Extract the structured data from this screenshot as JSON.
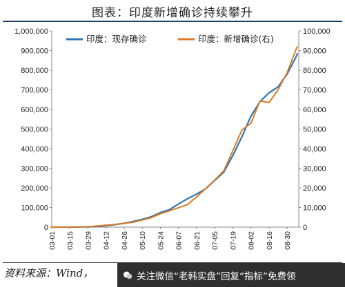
{
  "title": "图表：印度新增确诊持续攀升",
  "source": "资料来源：Wind，",
  "watermark": "关注微信“老韩实盘”回复“指标”免费领",
  "colors": {
    "series1": "#2e75b6",
    "series2": "#e07b22",
    "title_rule": "#1f3d6b"
  },
  "chart_data": {
    "type": "line",
    "x_tick_labels": [
      "03-01",
      "03-15",
      "03-29",
      "04-12",
      "04-26",
      "05-10",
      "05-24",
      "06-07",
      "06-21",
      "07-05",
      "07-19",
      "08-02",
      "08-16",
      "08-30"
    ],
    "y_left": {
      "lim": [
        0,
        1000000
      ],
      "tick_labels": [
        "0",
        "100,000",
        "200,000",
        "300,000",
        "400,000",
        "500,000",
        "600,000",
        "700,000",
        "800,000",
        "900,000",
        "1,000,000"
      ]
    },
    "y_right": {
      "lim": [
        0,
        100000
      ],
      "tick_labels": [
        "0",
        "10,000",
        "20,000",
        "30,000",
        "40,000",
        "50,000",
        "60,000",
        "70,000",
        "80,000",
        "90,000",
        "100,000"
      ]
    },
    "grid": false,
    "legend_position": "top",
    "series": [
      {
        "name": "印度：现存确诊",
        "axis": "left",
        "points": [
          [
            "03-01",
            0
          ],
          [
            "03-15",
            100
          ],
          [
            "03-29",
            900
          ],
          [
            "04-05",
            3000
          ],
          [
            "04-12",
            7500
          ],
          [
            "04-19",
            12500
          ],
          [
            "04-26",
            19500
          ],
          [
            "05-03",
            29000
          ],
          [
            "05-10",
            39500
          ],
          [
            "05-17",
            53000
          ],
          [
            "05-24",
            74000
          ],
          [
            "05-31",
            89500
          ],
          [
            "06-07",
            118000
          ],
          [
            "06-14",
            145000
          ],
          [
            "06-21",
            168000
          ],
          [
            "06-28",
            195000
          ],
          [
            "07-05",
            238000
          ],
          [
            "07-12",
            280000
          ],
          [
            "07-19",
            365000
          ],
          [
            "07-26",
            460000
          ],
          [
            "08-02",
            565000
          ],
          [
            "08-09",
            640000
          ],
          [
            "08-16",
            685000
          ],
          [
            "08-23",
            715000
          ],
          [
            "08-30",
            780000
          ],
          [
            "09-06",
            870000
          ],
          [
            "09-07",
            885000
          ]
        ]
      },
      {
        "name": "印度：新增确诊(右)",
        "axis": "right",
        "points": [
          [
            "03-01",
            0
          ],
          [
            "03-15",
            20
          ],
          [
            "03-29",
            200
          ],
          [
            "04-05",
            550
          ],
          [
            "04-12",
            1000
          ],
          [
            "04-19",
            1400
          ],
          [
            "04-26",
            1900
          ],
          [
            "05-03",
            2500
          ],
          [
            "05-10",
            3600
          ],
          [
            "05-17",
            4800
          ],
          [
            "05-24",
            6800
          ],
          [
            "05-31",
            8300
          ],
          [
            "06-07",
            9900
          ],
          [
            "06-14",
            11500
          ],
          [
            "06-21",
            15400
          ],
          [
            "06-28",
            19600
          ],
          [
            "07-05",
            24000
          ],
          [
            "07-12",
            28700
          ],
          [
            "07-19",
            38900
          ],
          [
            "07-26",
            49500
          ],
          [
            "08-02",
            52900
          ],
          [
            "08-09",
            64400
          ],
          [
            "08-16",
            63500
          ],
          [
            "08-23",
            70000
          ],
          [
            "08-30",
            78700
          ],
          [
            "09-06",
            90800
          ],
          [
            "09-07",
            92000
          ]
        ]
      }
    ]
  }
}
